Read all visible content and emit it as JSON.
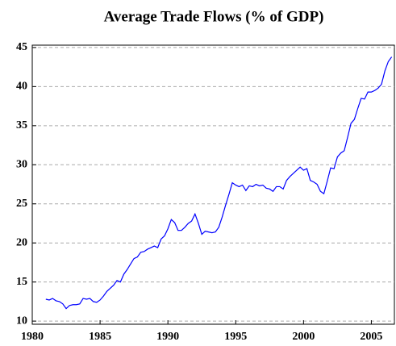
{
  "chart_data": {
    "type": "line",
    "title": "Average Trade Flows (% of GDP)",
    "x": [
      1981,
      1981.25,
      1981.5,
      1981.75,
      1982,
      1982.25,
      1982.5,
      1982.75,
      1983,
      1983.25,
      1983.5,
      1983.75,
      1984,
      1984.25,
      1984.5,
      1984.75,
      1985,
      1985.25,
      1985.5,
      1985.75,
      1986,
      1986.25,
      1986.5,
      1986.75,
      1987,
      1987.25,
      1987.5,
      1987.75,
      1988,
      1988.25,
      1988.5,
      1988.75,
      1989,
      1989.25,
      1989.5,
      1989.75,
      1990,
      1990.25,
      1990.5,
      1990.75,
      1991,
      1991.25,
      1991.5,
      1991.75,
      1992,
      1992.25,
      1992.5,
      1992.75,
      1993,
      1993.25,
      1993.5,
      1993.75,
      1994,
      1994.25,
      1994.5,
      1994.75,
      1995,
      1995.25,
      1995.5,
      1995.75,
      1996,
      1996.25,
      1996.5,
      1996.75,
      1997,
      1997.25,
      1997.5,
      1997.75,
      1998,
      1998.25,
      1998.5,
      1998.75,
      1999,
      1999.25,
      1999.5,
      1999.75,
      2000,
      2000.25,
      2000.5,
      2000.75,
      2001,
      2001.25,
      2001.5,
      2001.75,
      2002,
      2002.25,
      2002.5,
      2002.75,
      2003,
      2003.25,
      2003.5,
      2003.75,
      2004,
      2004.25,
      2004.5,
      2004.75,
      2005,
      2005.25,
      2005.5,
      2005.75,
      2006,
      2006.25,
      2006.5
    ],
    "values": [
      12.8,
      12.7,
      12.9,
      12.6,
      12.5,
      12.2,
      11.6,
      12.0,
      12.1,
      12.1,
      12.2,
      12.9,
      12.8,
      12.9,
      12.5,
      12.4,
      12.7,
      13.2,
      13.8,
      14.2,
      14.6,
      15.2,
      15.0,
      16.0,
      16.6,
      17.3,
      18.0,
      18.2,
      18.8,
      18.9,
      19.2,
      19.4,
      19.6,
      19.4,
      20.5,
      20.9,
      21.8,
      23.0,
      22.6,
      21.6,
      21.6,
      22.0,
      22.5,
      22.8,
      23.7,
      22.5,
      21.1,
      21.5,
      21.4,
      21.3,
      21.4,
      22.0,
      23.3,
      24.8,
      26.2,
      27.7,
      27.4,
      27.2,
      27.4,
      26.7,
      27.3,
      27.2,
      27.5,
      27.3,
      27.4,
      27.0,
      26.9,
      26.6,
      27.2,
      27.2,
      26.9,
      28.0,
      28.5,
      28.9,
      29.3,
      29.7,
      29.3,
      29.5,
      28.0,
      27.8,
      27.5,
      26.6,
      26.3,
      27.9,
      29.6,
      29.5,
      31.0,
      31.5,
      31.8,
      33.5,
      35.3,
      35.8,
      37.2,
      38.5,
      38.4,
      39.3,
      39.3,
      39.5,
      39.8,
      40.3,
      42.0,
      43.2,
      43.8
    ],
    "color": "#0000ff",
    "xlim": [
      1980,
      2006.7
    ],
    "xticks": [
      1980,
      1985,
      1990,
      1995,
      2000,
      2005
    ],
    "ylim": [
      9.6,
      45.3
    ],
    "yticks": [
      10,
      15,
      20,
      25,
      30,
      35,
      40,
      45
    ],
    "grid": true
  }
}
